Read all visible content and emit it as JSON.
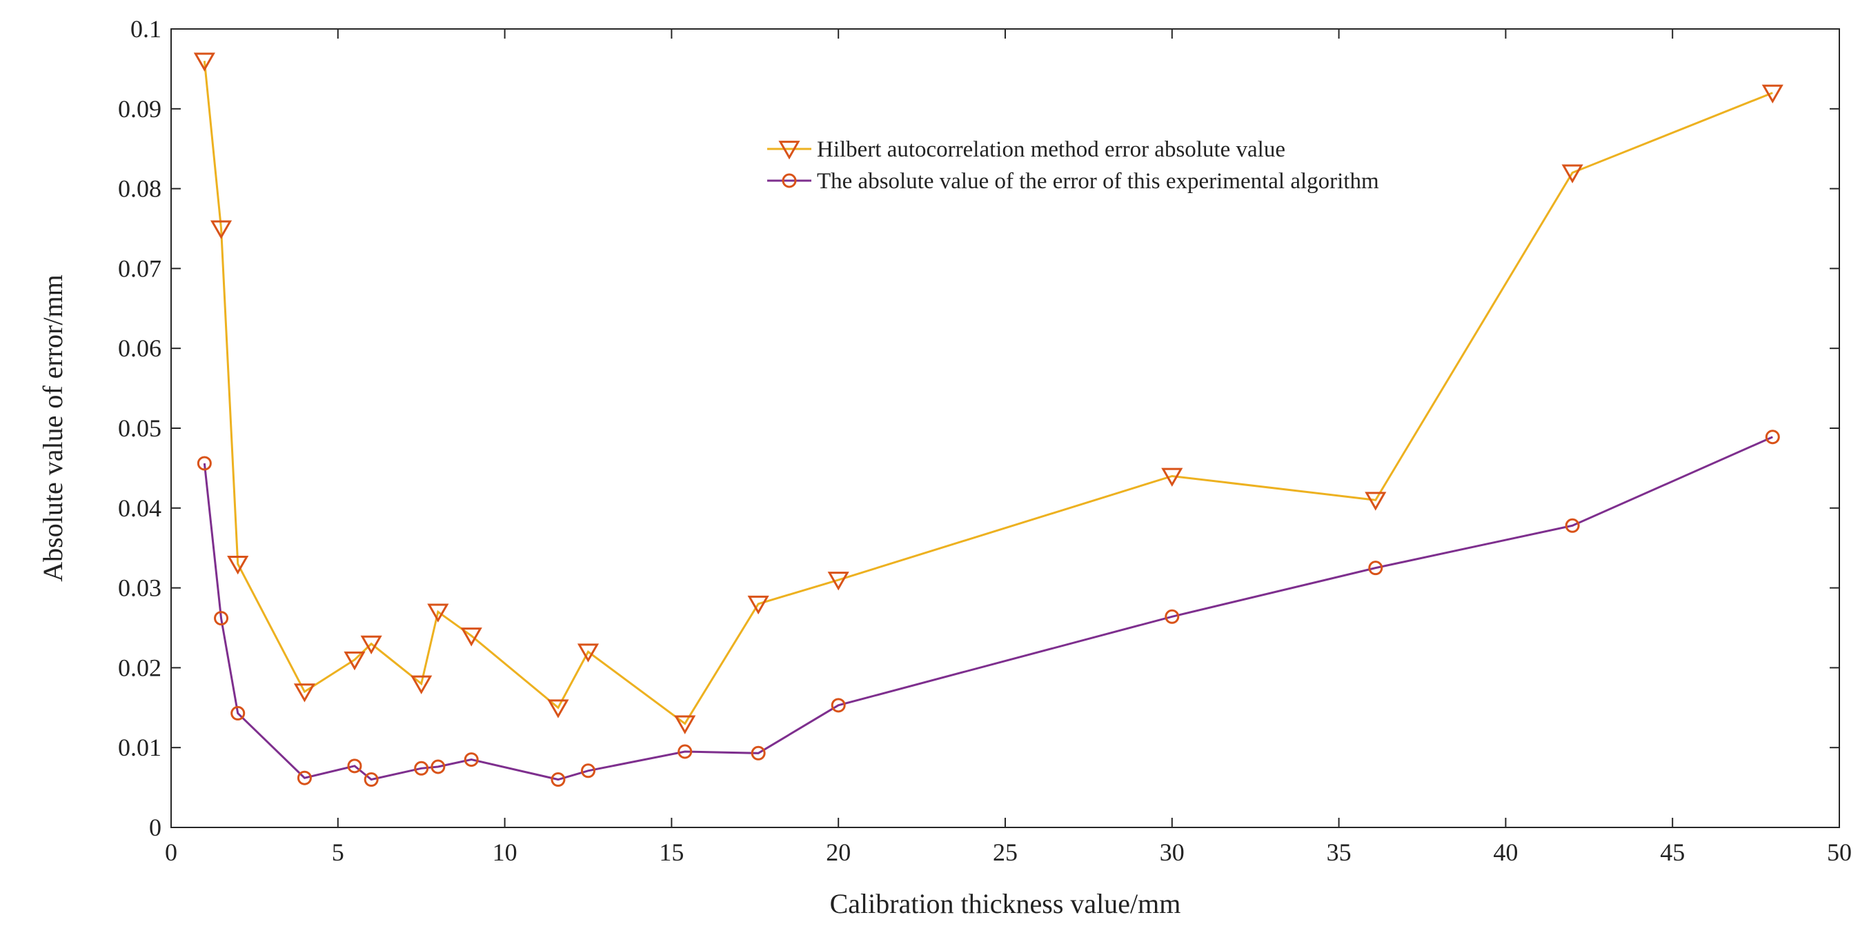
{
  "chart_data": {
    "type": "line",
    "title": "",
    "xlabel": "Calibration thickness value/mm",
    "ylabel": "Absolute value of error/mm",
    "xlim": [
      0,
      50
    ],
    "ylim": [
      0,
      0.1
    ],
    "xticks": [
      0,
      5,
      10,
      15,
      20,
      25,
      30,
      35,
      40,
      45,
      50
    ],
    "xtick_labels": [
      "0",
      "5",
      "10",
      "15",
      "20",
      "25",
      "30",
      "35",
      "40",
      "45",
      "50"
    ],
    "yticks": [
      0,
      0.01,
      0.02,
      0.03,
      0.04,
      0.05,
      0.06,
      0.07,
      0.08,
      0.09,
      0.1
    ],
    "ytick_labels": [
      "0",
      "0.01",
      "0.02",
      "0.03",
      "0.04",
      "0.05",
      "0.06",
      "0.07",
      "0.08",
      "0.09",
      "0.1"
    ],
    "grid": false,
    "legend_position": "top-center",
    "series": [
      {
        "name": "Hilbert autocorrelation method error absolute value",
        "color": "#EDB120",
        "marker_color": "#D95319",
        "marker": "triangle-down",
        "x": [
          1,
          1.5,
          2,
          4,
          5.5,
          6,
          7.5,
          8,
          9,
          11.6,
          12.5,
          15.4,
          17.6,
          20,
          30,
          36.1,
          42,
          48
        ],
        "y": [
          0.096,
          0.075,
          0.033,
          0.017,
          0.021,
          0.023,
          0.018,
          0.027,
          0.024,
          0.015,
          0.022,
          0.013,
          0.028,
          0.031,
          0.044,
          0.041,
          0.082,
          0.092
        ]
      },
      {
        "name": "The absolute value of the error of this experimental algorithm",
        "color": "#7E2F8E",
        "marker_color": "#D95319",
        "marker": "circle",
        "x": [
          1,
          1.5,
          2,
          4,
          5.5,
          6,
          7.5,
          8,
          9,
          11.6,
          12.5,
          15.4,
          17.6,
          20,
          30,
          36.1,
          42,
          48
        ],
        "y": [
          0.0456,
          0.0262,
          0.0143,
          0.0062,
          0.0077,
          0.006,
          0.0074,
          0.0076,
          0.0085,
          0.006,
          0.0071,
          0.0095,
          0.0093,
          0.0153,
          0.0264,
          0.0325,
          0.0378,
          0.0489
        ]
      }
    ]
  }
}
